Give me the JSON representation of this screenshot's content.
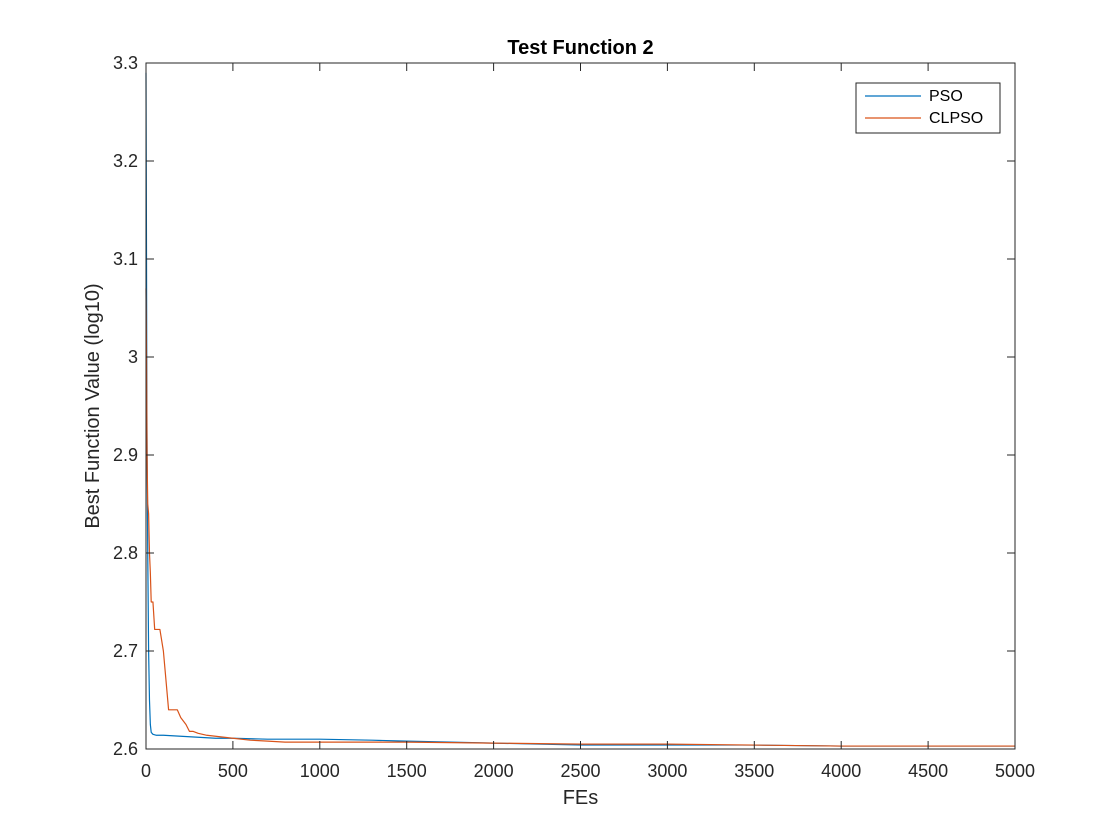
{
  "chart_data": {
    "type": "line",
    "title": "Test Function 2",
    "xlabel": "FEs",
    "ylabel": "Best Function Value (log10)",
    "xlim": [
      0,
      5000
    ],
    "ylim": [
      2.6,
      3.3
    ],
    "xticks": [
      "0",
      "500",
      "1000",
      "1500",
      "2000",
      "2500",
      "3000",
      "3500",
      "4000",
      "4500",
      "5000"
    ],
    "yticks": [
      "2.6",
      "2.7",
      "2.8",
      "2.9",
      "3",
      "3.1",
      "3.2",
      "3.3"
    ],
    "grid": false,
    "legend_position": "top-right",
    "series": [
      {
        "name": "PSO",
        "color": "#0072bd",
        "x": [
          0,
          3,
          5,
          10,
          15,
          20,
          25,
          30,
          40,
          60,
          100,
          200,
          300,
          400,
          500,
          700,
          1000,
          1300,
          1500,
          2000,
          2500,
          3000,
          3500,
          4000,
          4500,
          5000
        ],
        "y": [
          3.29,
          3.1,
          2.95,
          2.8,
          2.7,
          2.65,
          2.625,
          2.617,
          2.615,
          2.614,
          2.614,
          2.613,
          2.612,
          2.611,
          2.611,
          2.61,
          2.61,
          2.609,
          2.608,
          2.606,
          2.604,
          2.604,
          2.604,
          2.603,
          2.603,
          2.603
        ]
      },
      {
        "name": "CLPSO",
        "color": "#d95319",
        "x": [
          0,
          3,
          6,
          10,
          15,
          20,
          25,
          30,
          40,
          50,
          60,
          80,
          100,
          110,
          130,
          150,
          180,
          200,
          230,
          250,
          270,
          300,
          350,
          400,
          450,
          500,
          600,
          700,
          800,
          1000,
          1500,
          2000,
          2500,
          3000,
          3500,
          4000,
          4500,
          5000
        ],
        "y": [
          3.07,
          3.0,
          2.9,
          2.85,
          2.84,
          2.8,
          2.78,
          2.75,
          2.75,
          2.722,
          2.722,
          2.722,
          2.7,
          2.68,
          2.64,
          2.64,
          2.64,
          2.632,
          2.625,
          2.618,
          2.618,
          2.616,
          2.614,
          2.613,
          2.612,
          2.611,
          2.609,
          2.608,
          2.607,
          2.607,
          2.607,
          2.606,
          2.605,
          2.605,
          2.604,
          2.603,
          2.603,
          2.603
        ]
      }
    ]
  }
}
